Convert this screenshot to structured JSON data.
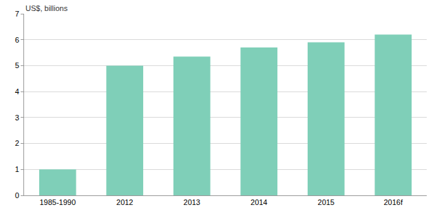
{
  "chart_data": {
    "type": "bar",
    "ylabel": "US$, billions",
    "categories": [
      "1985-1990",
      "2012",
      "2013",
      "2014",
      "2015",
      "2016f"
    ],
    "values": [
      1.0,
      5.0,
      5.35,
      5.7,
      5.9,
      6.2
    ],
    "color": "#7fcfb8",
    "ylim": [
      0,
      7
    ],
    "yticks": [
      0,
      1,
      2,
      3,
      4,
      5,
      6,
      7
    ],
    "grid": true
  }
}
